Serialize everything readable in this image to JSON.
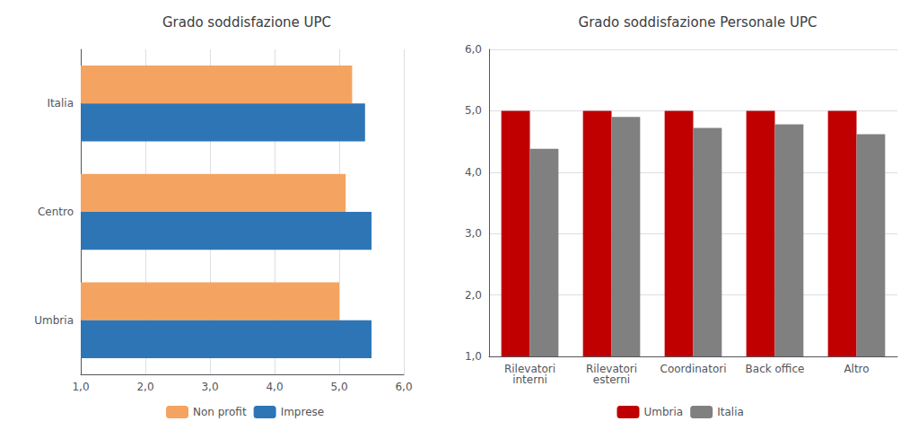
{
  "chart_data": [
    {
      "type": "bar",
      "orientation": "horizontal",
      "title": "Grado soddisfazione UPC",
      "categories": [
        "Umbria",
        "Centro",
        "Italia"
      ],
      "series": [
        {
          "name": "Non profit",
          "color": "#F4A460",
          "values": [
            5.0,
            5.1,
            5.2
          ]
        },
        {
          "name": "Imprese",
          "color": "#2E75B6",
          "values": [
            5.5,
            5.5,
            5.4
          ]
        }
      ],
      "xlim": [
        1.0,
        6.0
      ],
      "xticks": [
        {
          "value": 1.0,
          "label": "1,0"
        },
        {
          "value": 2.0,
          "label": "2,0"
        },
        {
          "value": 3.0,
          "label": "3,0"
        },
        {
          "value": 4.0,
          "label": "4,0"
        },
        {
          "value": 5.0,
          "label": "5,0"
        },
        {
          "value": 6.0,
          "label": "6,0"
        }
      ],
      "grid": true,
      "legend": "bottom"
    },
    {
      "type": "bar",
      "title": "Grado soddisfazione Personale UPC",
      "categories": [
        "Rilevatori\ninterni",
        "Rilevatori\nesterni",
        "Coordinatori",
        "Back office",
        "Altro"
      ],
      "series": [
        {
          "name": "Umbria",
          "color": "#C00000",
          "values": [
            5.0,
            5.0,
            5.0,
            5.0,
            5.0
          ]
        },
        {
          "name": "Italia",
          "color": "#808080",
          "values": [
            4.38,
            4.9,
            4.72,
            4.78,
            4.62
          ]
        }
      ],
      "ylim": [
        1.0,
        6.0
      ],
      "yticks": [
        {
          "value": 1.0,
          "label": "1,0"
        },
        {
          "value": 2.0,
          "label": "2,0"
        },
        {
          "value": 3.0,
          "label": "3,0"
        },
        {
          "value": 4.0,
          "label": "4,0"
        },
        {
          "value": 5.0,
          "label": "5,0"
        },
        {
          "value": 6.0,
          "label": "6,0"
        }
      ],
      "grid": true,
      "legend": "bottom"
    }
  ]
}
